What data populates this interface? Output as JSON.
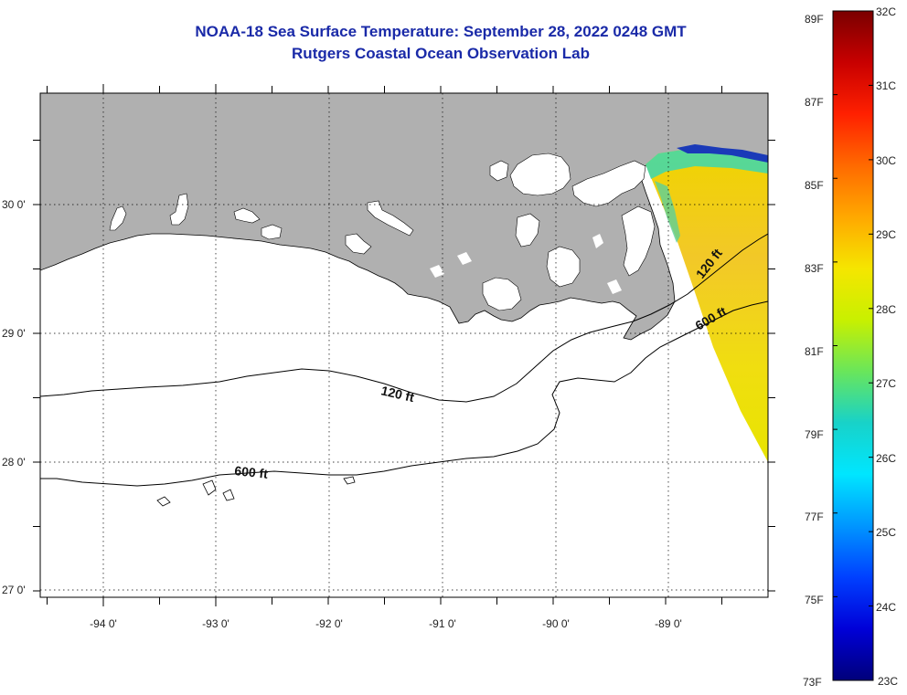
{
  "title": {
    "line1": "NOAA-18 Sea Surface Temperature:  September 28, 2022 0248 GMT",
    "line2": "Rutgers Coastal Ocean Observation Lab"
  },
  "map": {
    "longitude_labels": [
      "-94 0'",
      "-93 0'",
      "-92 0'",
      "-91 0'",
      "-90 0'",
      "-89 0'"
    ],
    "latitude_labels": [
      "30 0'",
      "29 0'",
      "28 0'",
      "27 0'"
    ],
    "contours": {
      "inner_label": "120 ft",
      "outer_label": "600 ft",
      "inner_label_east": "120 ft",
      "outer_label_east": "600 ft"
    },
    "colors": {
      "land": "#b0b0b0",
      "water_nodata": "#ffffff",
      "border": "#000000"
    }
  },
  "colorbar": {
    "fahrenheit_labels": [
      "89F",
      "87F",
      "85F",
      "83F",
      "81F",
      "79F",
      "77F",
      "75F",
      "73F"
    ],
    "celsius_labels": [
      "32C",
      "31C",
      "30C",
      "29C",
      "28C",
      "27C",
      "26C",
      "25C",
      "24C",
      "23C"
    ],
    "gradient_colors": [
      "#7a0000",
      "#c80000",
      "#ff2000",
      "#ff6a00",
      "#ffa800",
      "#f5e600",
      "#c8f000",
      "#6ae65a",
      "#18d2c8",
      "#00e6ff",
      "#0096ff",
      "#0040ff",
      "#0000d8",
      "#00007a"
    ]
  }
}
